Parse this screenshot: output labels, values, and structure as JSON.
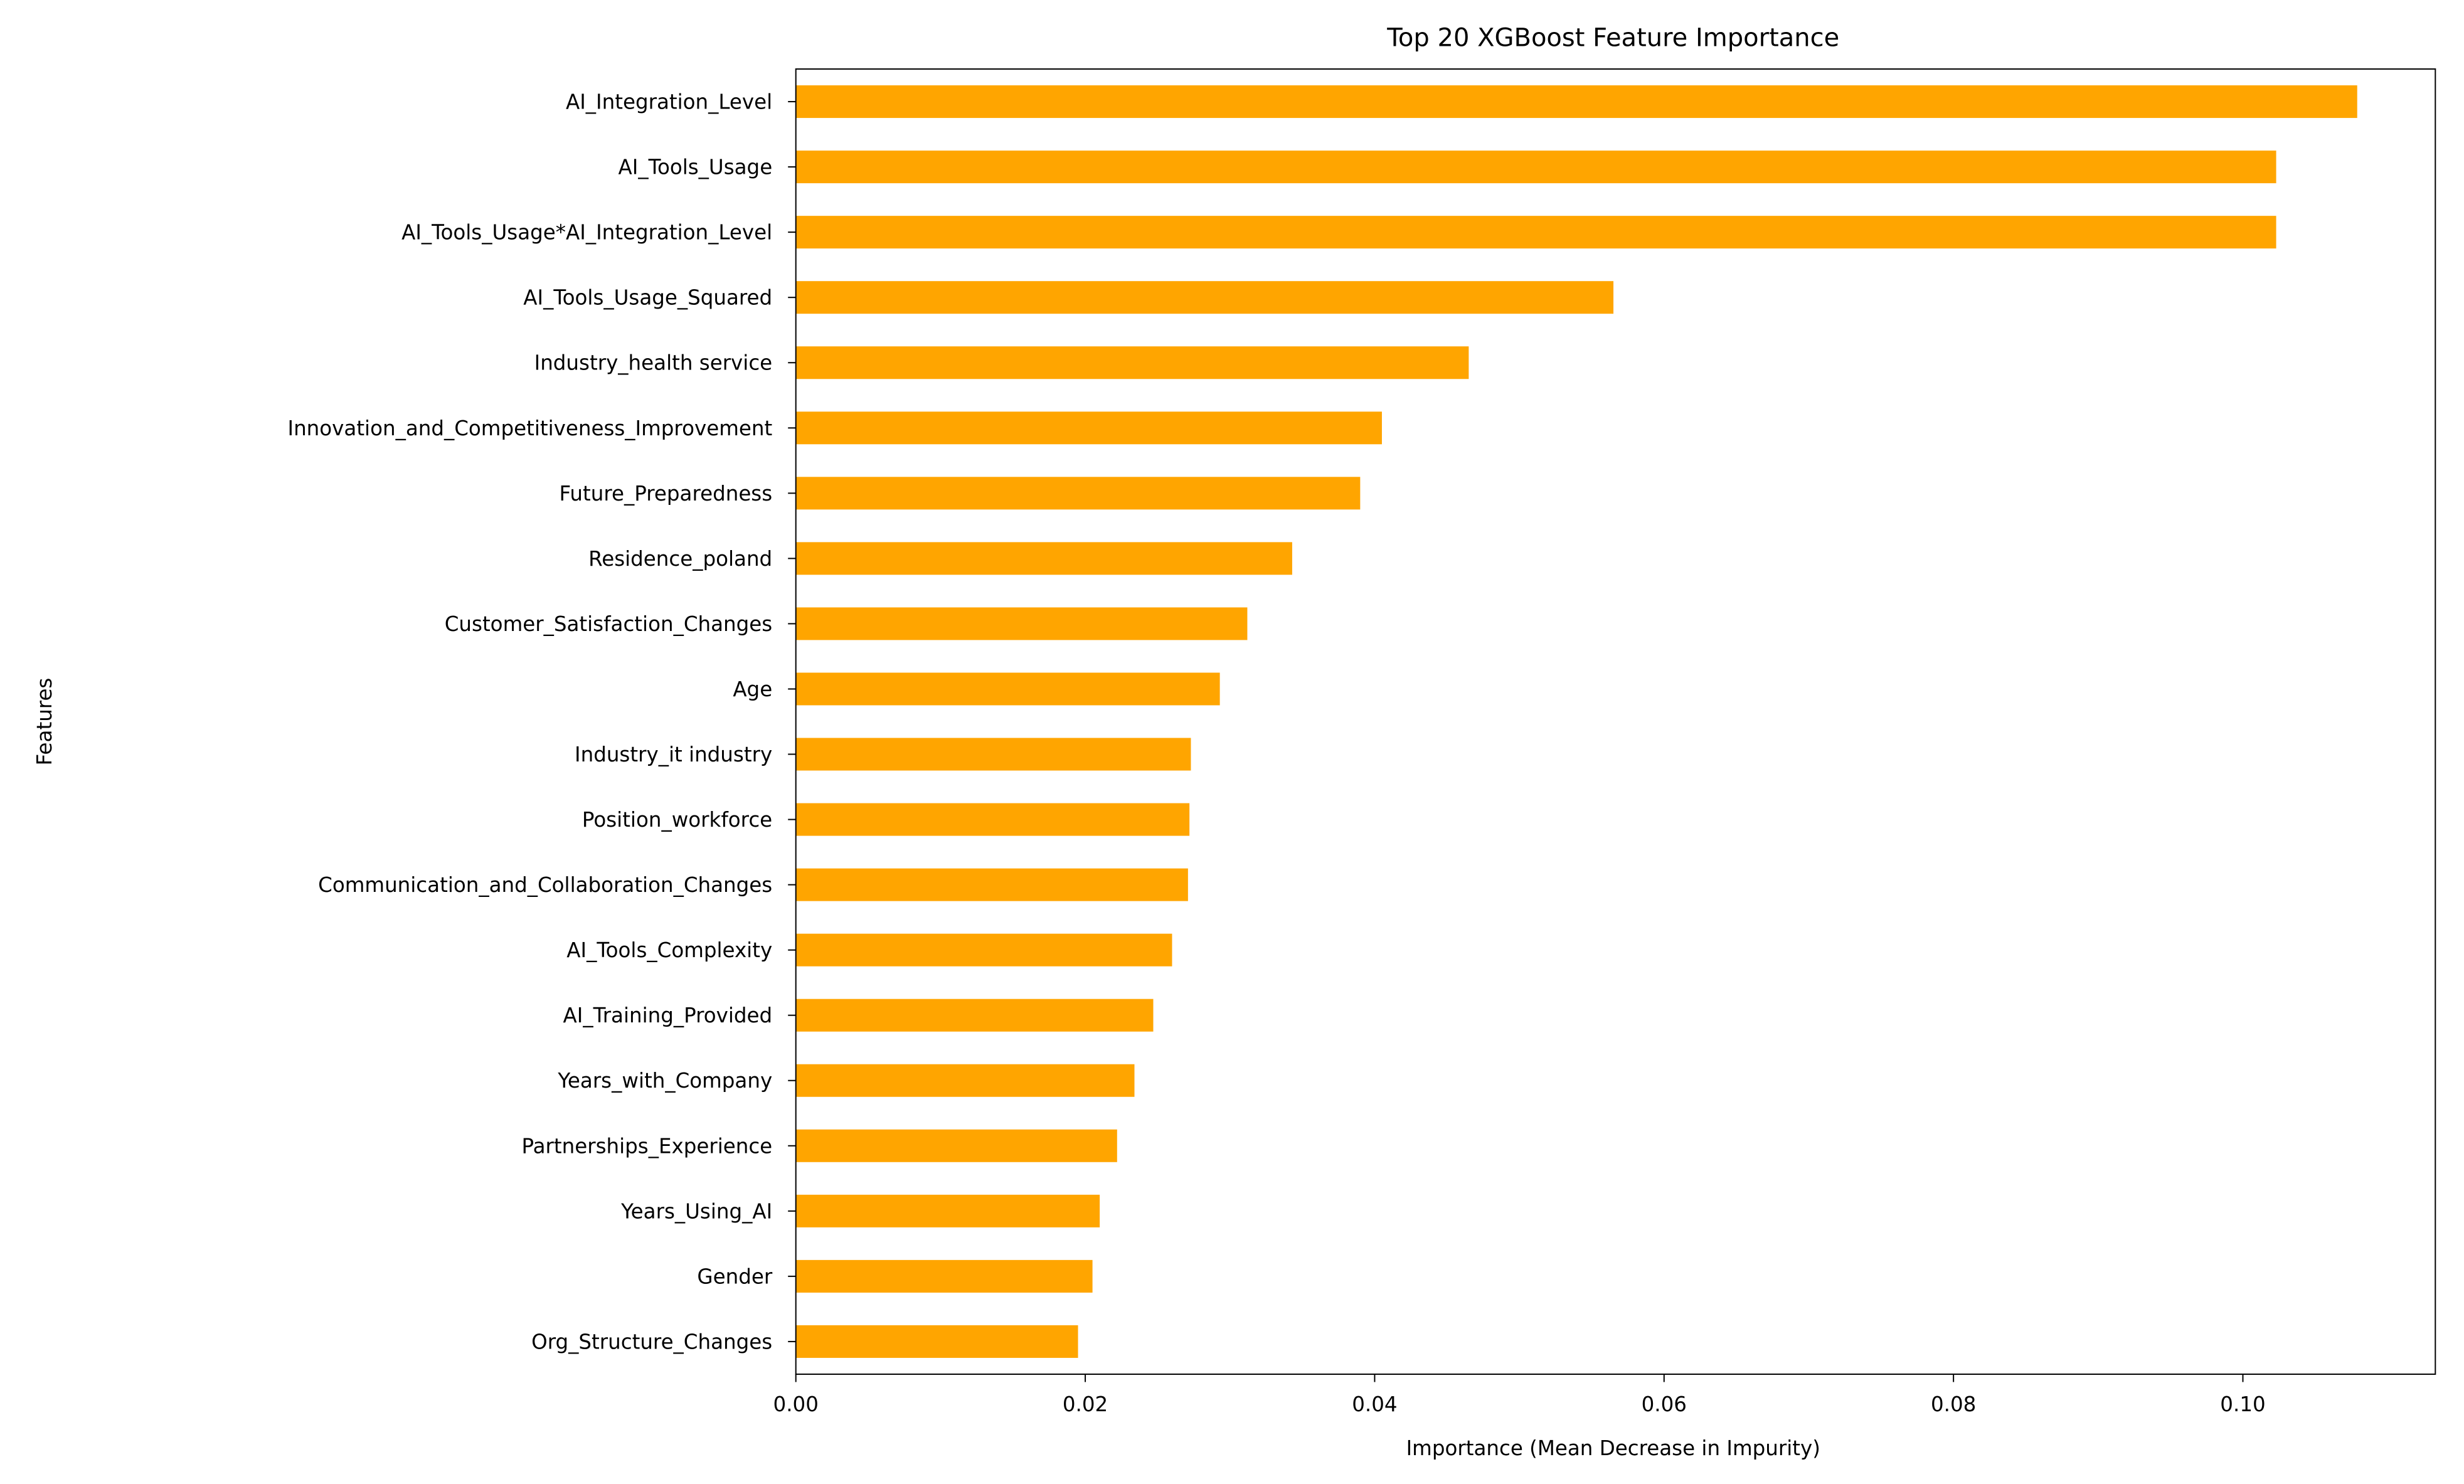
{
  "chart_data": {
    "type": "barh",
    "title": "Top 20 XGBoost Feature Importance",
    "x_label": "Importance (Mean Decrease in Impurity)",
    "y_label": "Features",
    "color": "#ffa500",
    "categories": [
      "AI_Integration_Level",
      "AI_Tools_Usage",
      "AI_Tools_Usage*AI_Integration_Level",
      "AI_Tools_Usage_Squared",
      "Industry_health service",
      "Innovation_and_Competitiveness_Improvement",
      "Future_Preparedness",
      "Residence_poland",
      "Customer_Satisfaction_Changes",
      "Age",
      "Industry_it industry",
      "Position_workforce",
      "Communication_and_Collaboration_Changes",
      "AI_Tools_Complexity",
      "AI_Training_Provided",
      "Years_with_Company",
      "Partnerships_Experience",
      "Years_Using_AI",
      "Gender",
      "Org_Structure_Changes"
    ],
    "values": [
      0.1079,
      0.1023,
      0.1023,
      0.0565,
      0.0465,
      0.0405,
      0.039,
      0.0343,
      0.0312,
      0.0293,
      0.0273,
      0.0272,
      0.0271,
      0.026,
      0.0247,
      0.0234,
      0.0222,
      0.021,
      0.0205,
      0.0195
    ],
    "xlim": [
      0,
      0.1133
    ],
    "xticks": [
      {
        "value": 0,
        "label": "0.00"
      },
      {
        "value": 0.02,
        "label": "0.02"
      },
      {
        "value": 0.04,
        "label": "0.04"
      },
      {
        "value": 0.06,
        "label": "0.06"
      },
      {
        "value": 0.08,
        "label": "0.08"
      },
      {
        "value": 0.1,
        "label": "0.10"
      }
    ],
    "grid": false
  }
}
